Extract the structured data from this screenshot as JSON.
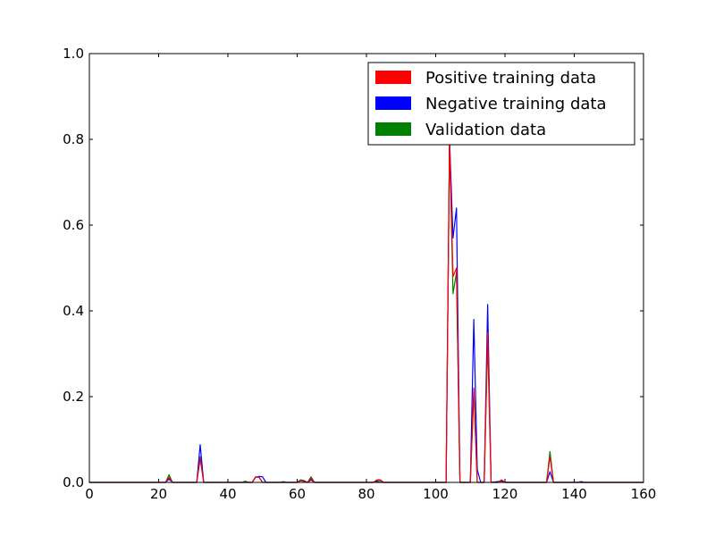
{
  "chart_data": {
    "type": "line",
    "xlim": [
      0,
      160
    ],
    "ylim": [
      0.0,
      1.0
    ],
    "grid": false,
    "legend_position": "top-right",
    "x_ticks": [
      0,
      20,
      40,
      60,
      80,
      100,
      120,
      140,
      160
    ],
    "y_ticks": [
      0.0,
      0.2,
      0.4,
      0.6,
      0.8,
      1.0
    ],
    "x_tick_labels": [
      "0",
      "20",
      "40",
      "60",
      "80",
      "100",
      "120",
      "140",
      "160"
    ],
    "y_tick_labels": [
      "0.0",
      "0.2",
      "0.4",
      "0.6",
      "0.8",
      "1.0"
    ],
    "series": [
      {
        "name": "Validation data",
        "color": "#008000",
        "points": [
          [
            0,
            0
          ],
          [
            22,
            0
          ],
          [
            23,
            0.018
          ],
          [
            24,
            0
          ],
          [
            31,
            0
          ],
          [
            32,
            0.06
          ],
          [
            33,
            0
          ],
          [
            44,
            0
          ],
          [
            45,
            0.003
          ],
          [
            46,
            0
          ],
          [
            47,
            0
          ],
          [
            48,
            0.013
          ],
          [
            49,
            0.012
          ],
          [
            50,
            0
          ],
          [
            55,
            0
          ],
          [
            56,
            0.002
          ],
          [
            57,
            0
          ],
          [
            60,
            0
          ],
          [
            61,
            0.006
          ],
          [
            62,
            0.004
          ],
          [
            63,
            0
          ],
          [
            64,
            0.013
          ],
          [
            65,
            0
          ],
          [
            82,
            0
          ],
          [
            83,
            0.004
          ],
          [
            84,
            0.004
          ],
          [
            85,
            0
          ],
          [
            103,
            0
          ],
          [
            104,
            0.8
          ],
          [
            105,
            0.44
          ],
          [
            106,
            0.49
          ],
          [
            107,
            0
          ],
          [
            110,
            0
          ],
          [
            111,
            0.21
          ],
          [
            112,
            0
          ],
          [
            114,
            0
          ],
          [
            115,
            0.33
          ],
          [
            116,
            0
          ],
          [
            118,
            0
          ],
          [
            119,
            0.005
          ],
          [
            120,
            0
          ],
          [
            132,
            0
          ],
          [
            133,
            0.072
          ],
          [
            134,
            0
          ],
          [
            141,
            0
          ],
          [
            142,
            0
          ],
          [
            160,
            0
          ]
        ]
      },
      {
        "name": "Negative training data",
        "color": "#0000ff",
        "points": [
          [
            0,
            0
          ],
          [
            22,
            0
          ],
          [
            23,
            0.008
          ],
          [
            24,
            0
          ],
          [
            31,
            0
          ],
          [
            32,
            0.088
          ],
          [
            33,
            0
          ],
          [
            47,
            0
          ],
          [
            48,
            0.012
          ],
          [
            49,
            0.014
          ],
          [
            50,
            0.013
          ],
          [
            51,
            0
          ],
          [
            60,
            0
          ],
          [
            61,
            0.004
          ],
          [
            62,
            0.003
          ],
          [
            63,
            0
          ],
          [
            64,
            0.006
          ],
          [
            65,
            0
          ],
          [
            82,
            0
          ],
          [
            83,
            0.002
          ],
          [
            84,
            0
          ],
          [
            103,
            0
          ],
          [
            104,
            0.8
          ],
          [
            105,
            0.57
          ],
          [
            106,
            0.64
          ],
          [
            107,
            0
          ],
          [
            110,
            0
          ],
          [
            111,
            0.38
          ],
          [
            112,
            0.03
          ],
          [
            113,
            0
          ],
          [
            114,
            0
          ],
          [
            115,
            0.415
          ],
          [
            116,
            0
          ],
          [
            119,
            0.003
          ],
          [
            120,
            0
          ],
          [
            132,
            0
          ],
          [
            133,
            0.025
          ],
          [
            134,
            0
          ],
          [
            141,
            0
          ],
          [
            142,
            0.002
          ],
          [
            143,
            0
          ],
          [
            160,
            0
          ]
        ]
      },
      {
        "name": "Positive training data",
        "color": "#ff0000",
        "points": [
          [
            0,
            0
          ],
          [
            22,
            0
          ],
          [
            23,
            0.012
          ],
          [
            24,
            0
          ],
          [
            31,
            0
          ],
          [
            32,
            0.055
          ],
          [
            33,
            0
          ],
          [
            47,
            0
          ],
          [
            48,
            0.013
          ],
          [
            49,
            0.012
          ],
          [
            50,
            0
          ],
          [
            60,
            0
          ],
          [
            61,
            0.004
          ],
          [
            62,
            0.002
          ],
          [
            63,
            0
          ],
          [
            64,
            0.01
          ],
          [
            65,
            0
          ],
          [
            82,
            0
          ],
          [
            83,
            0.006
          ],
          [
            84,
            0.006
          ],
          [
            85,
            0
          ],
          [
            103,
            0
          ],
          [
            104,
            0.8
          ],
          [
            105,
            0.48
          ],
          [
            106,
            0.5
          ],
          [
            107,
            0
          ],
          [
            110,
            0
          ],
          [
            111,
            0.22
          ],
          [
            112,
            0
          ],
          [
            114,
            0
          ],
          [
            115,
            0.35
          ],
          [
            116,
            0
          ],
          [
            118,
            0
          ],
          [
            119,
            0.006
          ],
          [
            120,
            0
          ],
          [
            132,
            0
          ],
          [
            133,
            0.06
          ],
          [
            134,
            0
          ],
          [
            141,
            0
          ],
          [
            142,
            0
          ],
          [
            160,
            0
          ]
        ]
      }
    ],
    "legend": [
      {
        "label": "Positive training data",
        "color": "#ff0000"
      },
      {
        "label": "Negative training data",
        "color": "#0000ff"
      },
      {
        "label": "Validation data",
        "color": "#008000"
      }
    ]
  }
}
